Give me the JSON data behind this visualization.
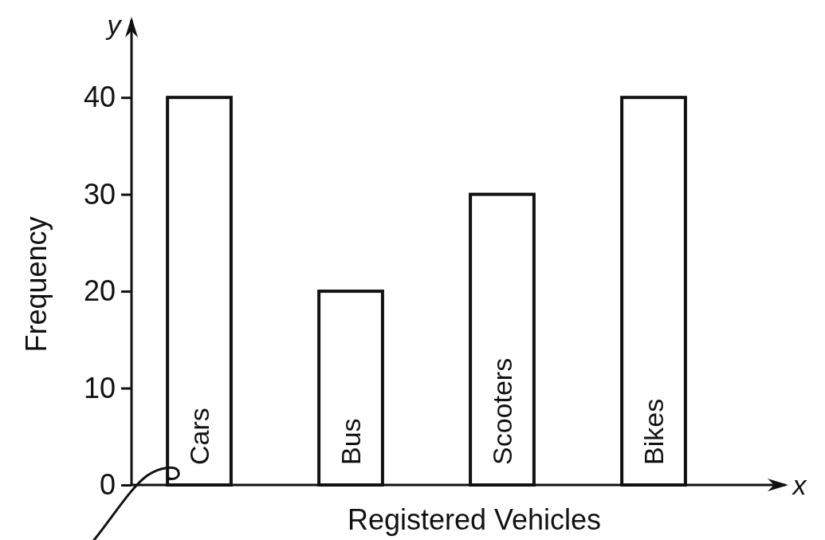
{
  "chart_data": {
    "type": "bar",
    "xlabel": "Registered Vehicles",
    "ylabel": "Frequency",
    "categories": [
      "Cars",
      "Bus",
      "Scooters",
      "Bikes"
    ],
    "values": [
      40,
      20,
      30,
      40
    ],
    "color": "#ffffff",
    "ylim": [
      0,
      48
    ],
    "yticks": [
      0,
      10,
      20,
      30,
      40
    ],
    "annotations": [
      "y",
      "x"
    ]
  }
}
